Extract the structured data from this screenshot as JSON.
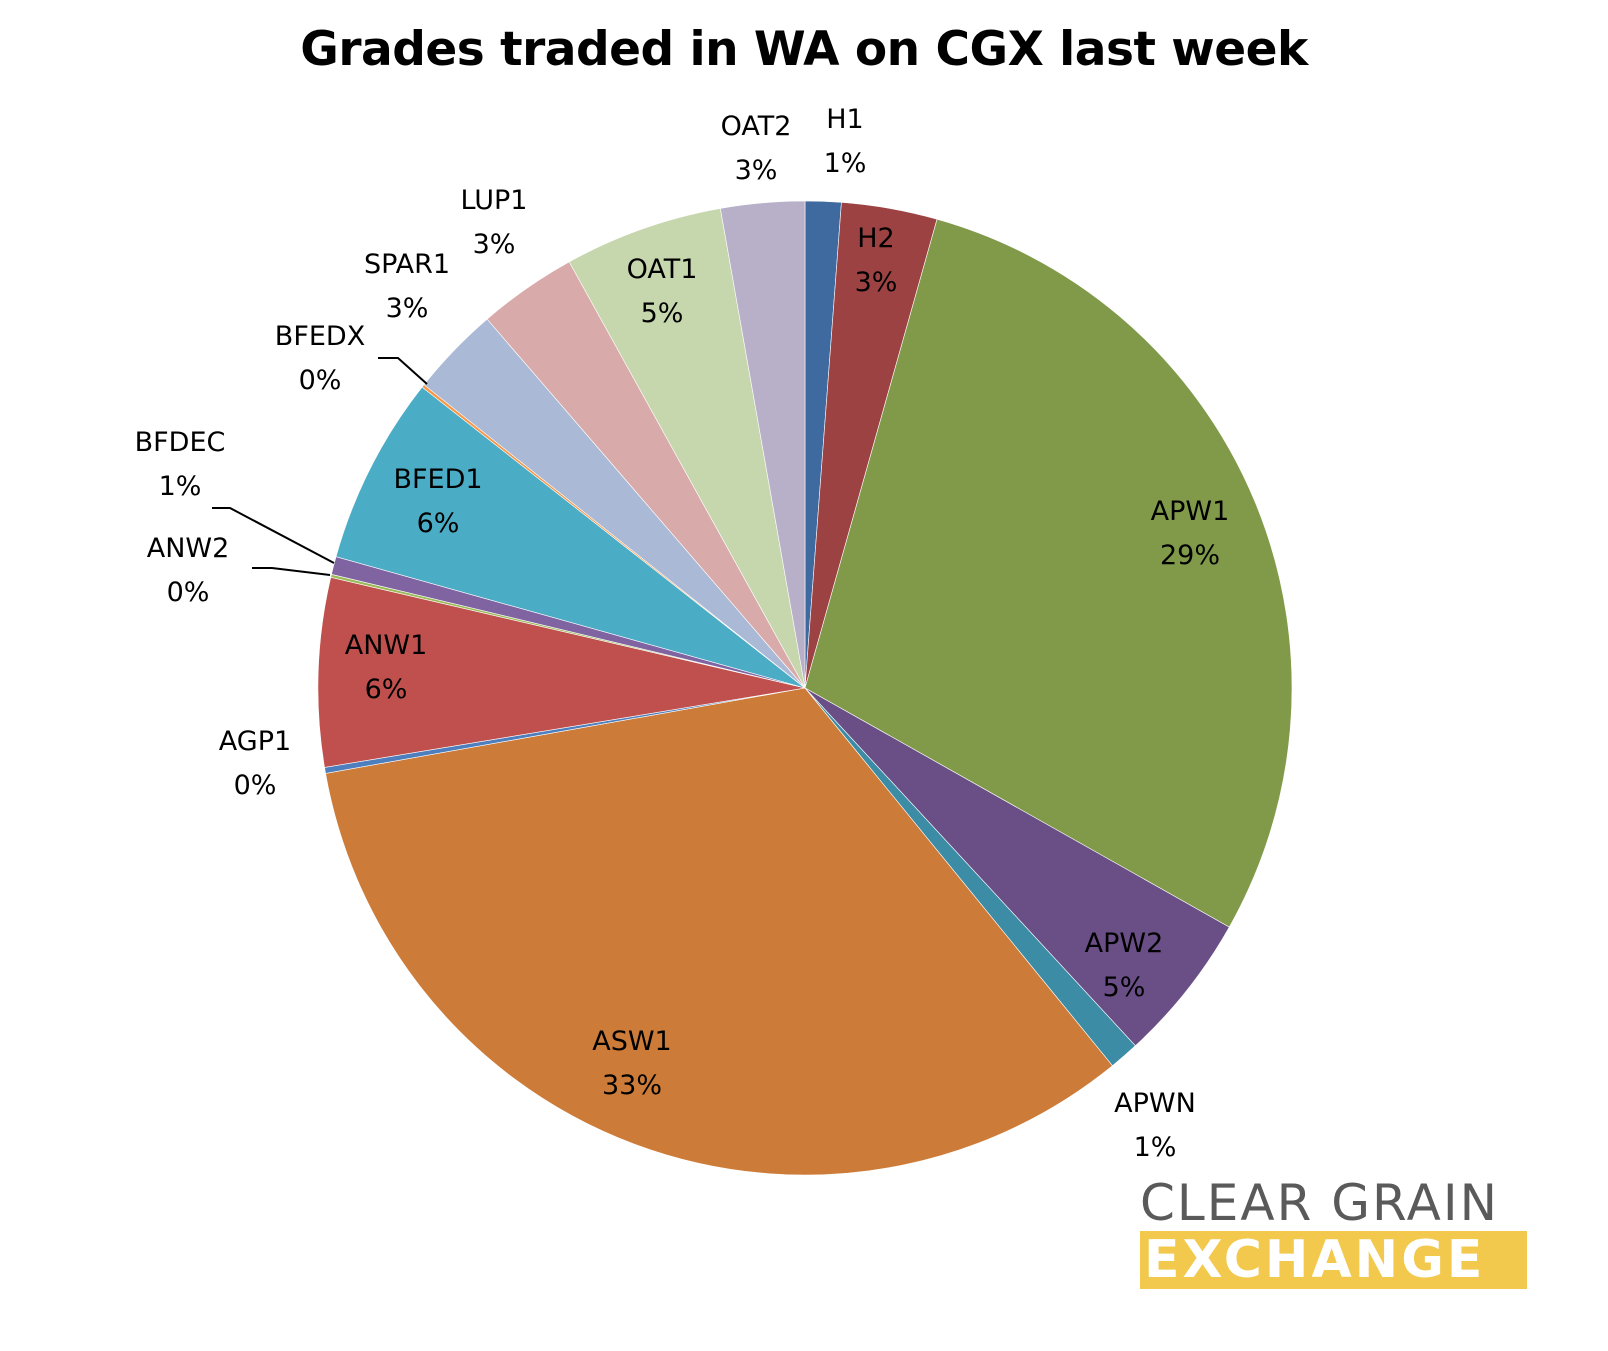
{
  "chart_data": {
    "type": "pie",
    "title": "Grades traded in WA on CGX last week",
    "slices": [
      {
        "label": "H1",
        "pct_label": "1%",
        "value": 1.2,
        "color": "#3e6aa0"
      },
      {
        "label": "H2",
        "pct_label": "3%",
        "value": 3.2,
        "color": "#9c4242"
      },
      {
        "label": "APW1",
        "pct_label": "29%",
        "value": 29.0,
        "color": "#809a4a"
      },
      {
        "label": "APW2",
        "pct_label": "5%",
        "value": 5.0,
        "color": "#6a4f87"
      },
      {
        "label": "APWN",
        "pct_label": "1%",
        "value": 1.0,
        "color": "#3b8ca4"
      },
      {
        "label": "ASW1",
        "pct_label": "33%",
        "value": 33.3,
        "color": "#cc7b38"
      },
      {
        "label": "AGP1",
        "pct_label": "0%",
        "value": 0.2,
        "color": "#4d7ebd"
      },
      {
        "label": "ANW1",
        "pct_label": "6%",
        "value": 6.3,
        "color": "#c0504d"
      },
      {
        "label": "ANW2",
        "pct_label": "0%",
        "value": 0.1,
        "color": "#9bbb59"
      },
      {
        "label": "BFDEC",
        "pct_label": "1%",
        "value": 0.6,
        "color": "#8064a2"
      },
      {
        "label": "BFED1",
        "pct_label": "6%",
        "value": 6.3,
        "color": "#4bacc6"
      },
      {
        "label": "BFEDX",
        "pct_label": "0%",
        "value": 0.1,
        "color": "#f79646"
      },
      {
        "label": "SPAR1",
        "pct_label": "3%",
        "value": 3.0,
        "color": "#aab9d5"
      },
      {
        "label": "LUP1",
        "pct_label": "3%",
        "value": 3.3,
        "color": "#d9aaaa"
      },
      {
        "label": "OAT1",
        "pct_label": "5%",
        "value": 5.3,
        "color": "#c6d6ad"
      },
      {
        "label": "OAT2",
        "pct_label": "3%",
        "value": 2.8,
        "color": "#b8afc9"
      }
    ]
  },
  "logo": {
    "line1": "CLEAR GRAIN",
    "line2": "EXCHANGE",
    "colors": {
      "line1": "#5a5a5a",
      "line2_bg": "#f2c94c"
    }
  }
}
